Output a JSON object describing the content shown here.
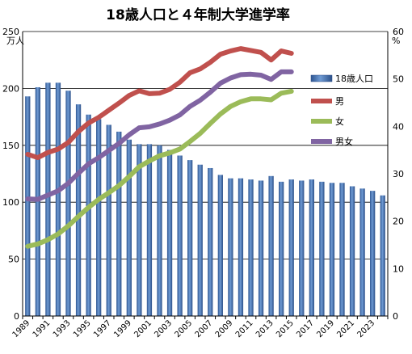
{
  "chart_data": {
    "type": "bar+line",
    "title": "18歳人口と４年制大学進学率",
    "y_left_unit": "万人",
    "y_right_unit": "%",
    "ylim_left": [
      0,
      250
    ],
    "ylim_right": [
      0,
      60
    ],
    "yticks_left": [
      0,
      50,
      100,
      150,
      200,
      250
    ],
    "yticks_right": [
      0,
      10,
      20,
      30,
      40,
      50,
      60
    ],
    "x_start": 1989,
    "x_end": 2024,
    "xticks": [
      "1989",
      "1991",
      "1993",
      "1995",
      "1997",
      "1999",
      "2001",
      "2003",
      "2005",
      "2007",
      "2009",
      "2011",
      "2013",
      "2015",
      "2017",
      "2019",
      "2021",
      "2023"
    ],
    "grid": "horizontal-major",
    "legend_position": "right",
    "bar_series": {
      "name": "18歳人口",
      "color": "#3f6aa6",
      "x": [
        1989,
        1990,
        1991,
        1992,
        1993,
        1994,
        1995,
        1996,
        1997,
        1998,
        1999,
        2000,
        2001,
        2002,
        2003,
        2004,
        2005,
        2006,
        2007,
        2008,
        2009,
        2010,
        2011,
        2012,
        2013,
        2014,
        2015,
        2016,
        2017,
        2018,
        2019,
        2020,
        2021,
        2022,
        2023,
        2024
      ],
      "values": [
        193,
        201,
        205,
        205,
        198,
        186,
        177,
        173,
        168,
        162,
        155,
        151,
        151,
        150,
        146,
        141,
        137,
        133,
        130,
        124,
        121,
        121,
        120,
        119,
        123,
        118,
        120,
        119,
        120,
        118,
        117,
        117,
        114,
        112,
        110,
        106
      ]
    },
    "line_series": [
      {
        "name": "男",
        "color": "#c0504d",
        "x": [
          1989,
          1990,
          1991,
          1992,
          1993,
          1994,
          1995,
          1996,
          1997,
          1998,
          1999,
          2000,
          2001,
          2002,
          2003,
          2004,
          2005,
          2006,
          2007,
          2008,
          2009,
          2010,
          2011,
          2012,
          2013,
          2014,
          2015
        ],
        "values": [
          34.1,
          33.4,
          34.5,
          35.2,
          36.6,
          38.9,
          40.7,
          41.9,
          43.4,
          44.9,
          46.5,
          47.5,
          46.9,
          47.0,
          47.8,
          49.3,
          51.3,
          52.1,
          53.5,
          55.2,
          55.9,
          56.4,
          56.0,
          55.6,
          54.0,
          55.9,
          55.4
        ]
      },
      {
        "name": "女",
        "color": "#9bbb59",
        "x": [
          1989,
          1990,
          1991,
          1992,
          1993,
          1994,
          1995,
          1996,
          1997,
          1998,
          1999,
          2000,
          2001,
          2002,
          2003,
          2004,
          2005,
          2006,
          2007,
          2008,
          2009,
          2010,
          2011,
          2012,
          2013,
          2014,
          2015
        ],
        "values": [
          14.7,
          15.2,
          16.1,
          17.3,
          19.0,
          21.0,
          22.9,
          24.6,
          26.0,
          27.5,
          29.4,
          31.5,
          32.7,
          33.8,
          34.4,
          35.2,
          36.8,
          38.5,
          40.6,
          42.6,
          44.2,
          45.2,
          45.8,
          45.8,
          45.6,
          47.0,
          47.4
        ]
      },
      {
        "name": "男女",
        "color": "#8064a2",
        "x": [
          1989,
          1990,
          1991,
          1992,
          1993,
          1994,
          1995,
          1996,
          1997,
          1998,
          1999,
          2000,
          2001,
          2002,
          2003,
          2004,
          2005,
          2006,
          2007,
          2008,
          2009,
          2010,
          2011,
          2012,
          2013,
          2014,
          2015
        ],
        "values": [
          24.7,
          24.6,
          25.5,
          26.4,
          28.0,
          30.1,
          32.1,
          33.4,
          34.9,
          36.4,
          38.2,
          39.7,
          39.9,
          40.5,
          41.3,
          42.4,
          44.2,
          45.5,
          47.2,
          49.1,
          50.2,
          50.9,
          51.0,
          50.8,
          49.9,
          51.5,
          51.5
        ]
      }
    ]
  }
}
